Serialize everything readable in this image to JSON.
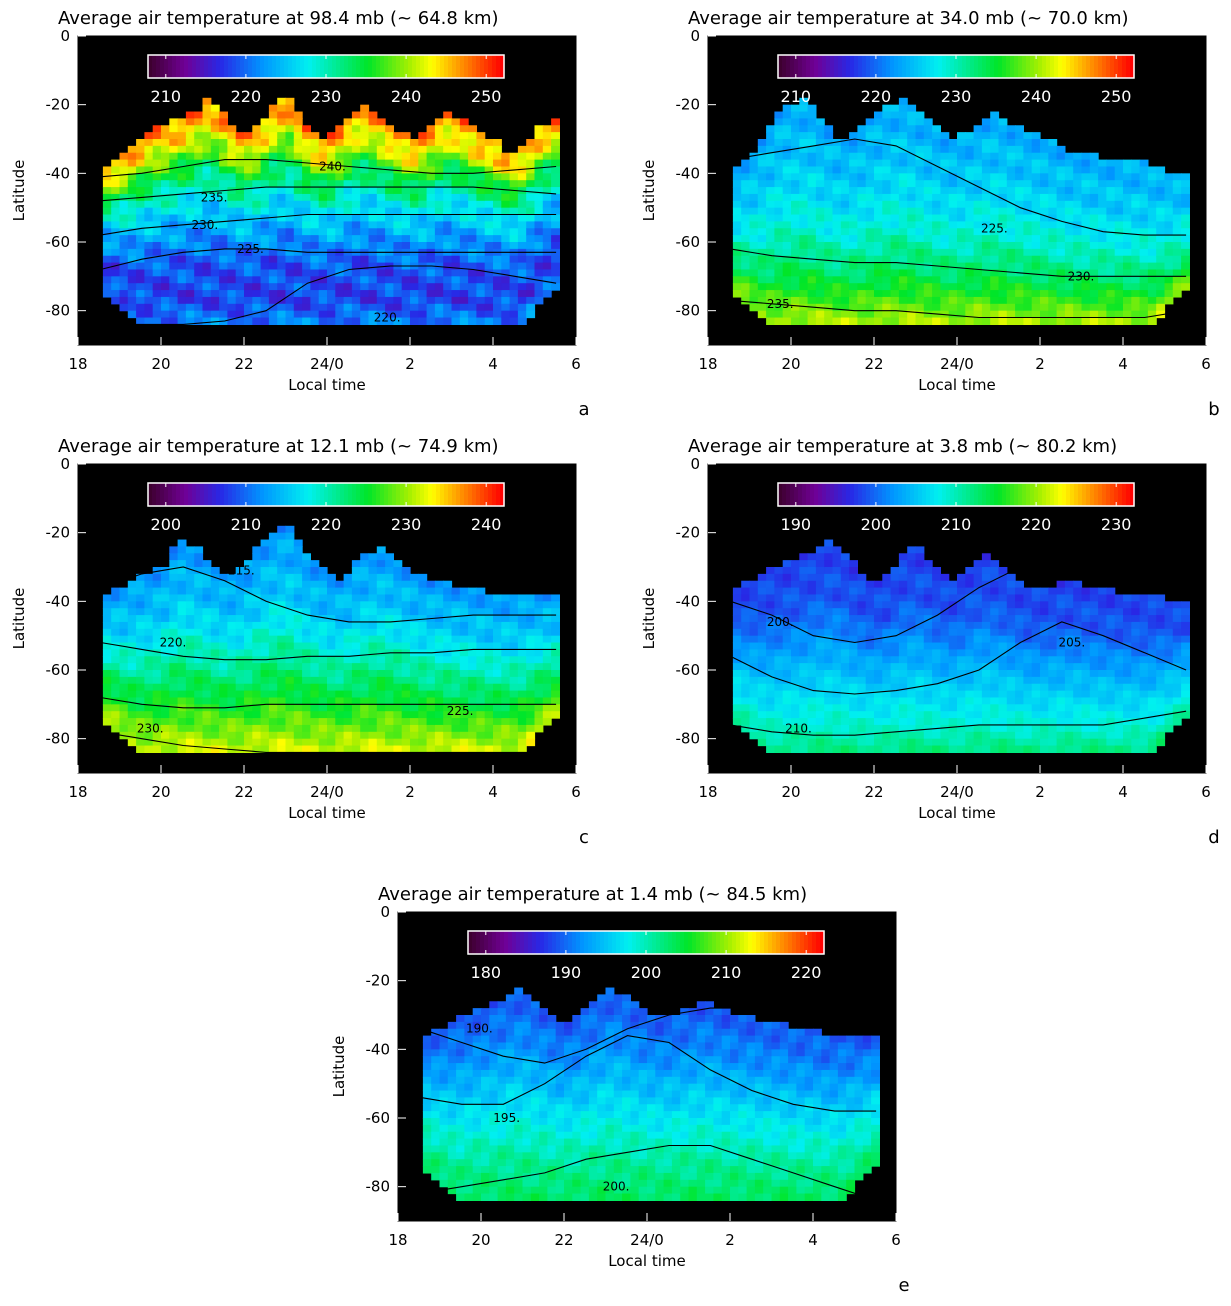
{
  "chart_data": [
    {
      "type": "heatmap",
      "panel_label": "a",
      "title": "Average air temperature at  98.4 mb (~ 64.8 km)",
      "xlabel": "Local time",
      "ylabel": "Latitude",
      "x_ticks": [
        "18",
        "20",
        "22",
        "24/0",
        "2",
        "4",
        "6"
      ],
      "y_ticks": [
        "0",
        "-20",
        "-40",
        "-60",
        "-80"
      ],
      "ylim": [
        -90,
        0
      ],
      "colorbar_ticks": [
        "210",
        "220",
        "230",
        "240",
        "250"
      ],
      "vmin": 210,
      "vmax": 250,
      "upper_edge": [
        -40,
        -36,
        -32,
        -28,
        -26,
        -24,
        -22,
        -18,
        -24,
        -28,
        -26,
        -20,
        -18,
        -26,
        -30,
        -28,
        -22,
        -20,
        -24,
        -28,
        -30,
        -26,
        -22,
        -24,
        -28,
        -30,
        -34,
        -32,
        -26,
        -24
      ],
      "profile": [
        [
          0,
          246
        ],
        [
          0.12,
          242
        ],
        [
          0.22,
          236
        ],
        [
          0.35,
          230
        ],
        [
          0.5,
          225
        ],
        [
          0.7,
          220
        ],
        [
          0.88,
          219
        ],
        [
          1,
          222
        ]
      ],
      "dlat": 3,
      "dlon": 5,
      "contours": [
        {
          "label": "240.",
          "y": [
            -41,
            -40,
            -38,
            -36,
            -36,
            -37,
            -38,
            -39,
            -40,
            -40,
            -39,
            -38
          ],
          "lx": 0.48,
          "ly": -38
        },
        {
          "label": "235.",
          "y": [
            -48,
            -47,
            -46,
            -45,
            -44,
            -44,
            -44,
            -44,
            -44,
            -44,
            -45,
            -46
          ],
          "lx": 0.22,
          "ly": -47
        },
        {
          "label": "230.",
          "y": [
            -58,
            -56,
            -55,
            -54,
            -53,
            -52,
            -52,
            -52,
            -52,
            -52,
            -52,
            -52
          ],
          "lx": 0.2,
          "ly": -55
        },
        {
          "label": "225.",
          "y": [
            -68,
            -65,
            -63,
            -62,
            -62,
            -63,
            -63,
            -63,
            -63,
            -63,
            -63,
            -63
          ],
          "lx": 0.3,
          "ly": -62
        },
        {
          "label": "220.",
          "y": [
            -84,
            -84,
            -84,
            -83,
            -80,
            -72,
            -68,
            -67,
            -67,
            -68,
            -70,
            -72
          ],
          "lx": 0.6,
          "ly": -82
        }
      ]
    },
    {
      "type": "heatmap",
      "panel_label": "b",
      "title": "Average air temperature at  34.0 mb (~ 70.0 km)",
      "xlabel": "Local time",
      "ylabel": "Latitude",
      "x_ticks": [
        "18",
        "20",
        "22",
        "24/0",
        "2",
        "4",
        "6"
      ],
      "y_ticks": [
        "0",
        "-20",
        "-40",
        "-60",
        "-80"
      ],
      "ylim": [
        -90,
        0
      ],
      "colorbar_ticks": [
        "210",
        "220",
        "230",
        "240",
        "250"
      ],
      "vmin": 210,
      "vmax": 250,
      "upper_edge": [
        -40,
        -36,
        -30,
        -22,
        -20,
        -18,
        -26,
        -30,
        -28,
        -24,
        -20,
        -18,
        -22,
        -26,
        -30,
        -28,
        -24,
        -22,
        -26,
        -28,
        -30,
        -32,
        -34,
        -34,
        -36,
        -36,
        -36,
        -38,
        -40,
        -40
      ],
      "profile": [
        [
          0,
          224
        ],
        [
          0.3,
          226
        ],
        [
          0.55,
          229
        ],
        [
          0.75,
          233
        ],
        [
          0.9,
          237
        ],
        [
          1,
          240
        ]
      ],
      "dlat": 2,
      "dlon": 3,
      "contours": [
        {
          "label": "225.",
          "y": [
            -36,
            -34,
            -32,
            -30,
            -32,
            -38,
            -44,
            -50,
            -54,
            -57,
            -58,
            -58
          ],
          "lx": 0.55,
          "ly": -56
        },
        {
          "label": "230.",
          "y": [
            -62,
            -64,
            -65,
            -66,
            -66,
            -67,
            -68,
            -69,
            -70,
            -70,
            -70,
            -70
          ],
          "lx": 0.74,
          "ly": -70
        },
        {
          "label": "235.",
          "y": [
            -77,
            -78,
            -79,
            -80,
            -80,
            -81,
            -82,
            -82,
            -82,
            -82,
            -82,
            -80
          ],
          "lx": 0.08,
          "ly": -78
        }
      ]
    },
    {
      "type": "heatmap",
      "panel_label": "c",
      "title": "Average air temperature at  12.1 mb (~ 74.9 km)",
      "xlabel": "Local time",
      "ylabel": "Latitude",
      "x_ticks": [
        "18",
        "20",
        "22",
        "24/0",
        "2",
        "4",
        "6"
      ],
      "y_ticks": [
        "0",
        "-20",
        "-40",
        "-60",
        "-80"
      ],
      "ylim": [
        -90,
        0
      ],
      "colorbar_ticks": [
        "200",
        "210",
        "220",
        "230",
        "240"
      ],
      "vmin": 200,
      "vmax": 240,
      "upper_edge": [
        -38,
        -36,
        -34,
        -32,
        -30,
        -22,
        -24,
        -28,
        -32,
        -30,
        -24,
        -20,
        -18,
        -26,
        -30,
        -34,
        -30,
        -26,
        -24,
        -28,
        -32,
        -34,
        -34,
        -36,
        -36,
        -38,
        -38,
        -38,
        -38,
        -38
      ],
      "profile": [
        [
          0,
          213
        ],
        [
          0.3,
          216
        ],
        [
          0.5,
          220
        ],
        [
          0.7,
          224
        ],
        [
          0.88,
          228
        ],
        [
          1,
          231
        ]
      ],
      "dlat": 2,
      "dlon": 3,
      "contours": [
        {
          "label": "215.",
          "y": [
            -36,
            -32,
            -30,
            -34,
            -40,
            -44,
            -46,
            -46,
            -45,
            -44,
            -44,
            -44
          ],
          "lx": 0.28,
          "ly": -31
        },
        {
          "label": "220.",
          "y": [
            -52,
            -54,
            -56,
            -57,
            -57,
            -56,
            -56,
            -55,
            -55,
            -54,
            -54,
            -54
          ],
          "lx": 0.13,
          "ly": -52
        },
        {
          "label": "225.",
          "y": [
            -68,
            -70,
            -71,
            -71,
            -70,
            -70,
            -70,
            -70,
            -70,
            -70,
            -70,
            -70
          ],
          "lx": 0.76,
          "ly": -72
        },
        {
          "label": "230.",
          "y": [
            -78,
            -80,
            -82,
            -83,
            -84,
            -84,
            -84,
            -84,
            -84,
            -84,
            -84,
            -84
          ],
          "lx": 0.08,
          "ly": -77
        }
      ]
    },
    {
      "type": "heatmap",
      "panel_label": "d",
      "title": "Average air temperature at   3.8 mb (~ 80.2 km)",
      "xlabel": "Local time",
      "ylabel": "Latitude",
      "x_ticks": [
        "18",
        "20",
        "22",
        "24/0",
        "2",
        "4",
        "6"
      ],
      "y_ticks": [
        "0",
        "-20",
        "-40",
        "-60",
        "-80"
      ],
      "ylim": [
        -90,
        0
      ],
      "colorbar_ticks": [
        "190",
        "200",
        "210",
        "220",
        "230"
      ],
      "vmin": 190,
      "vmax": 230,
      "upper_edge": [
        -36,
        -34,
        -32,
        -30,
        -28,
        -26,
        -22,
        -24,
        -30,
        -34,
        -32,
        -26,
        -24,
        -30,
        -34,
        -30,
        -26,
        -28,
        -32,
        -36,
        -36,
        -34,
        -34,
        -36,
        -36,
        -38,
        -38,
        -38,
        -40,
        -40
      ],
      "profile": [
        [
          0,
          199
        ],
        [
          0.25,
          200
        ],
        [
          0.45,
          203
        ],
        [
          0.65,
          206
        ],
        [
          0.85,
          209
        ],
        [
          1,
          212
        ]
      ],
      "dlat": 1.5,
      "dlon": 2,
      "contours": [
        {
          "label": "200.",
          "y": [
            -40,
            -44,
            -50,
            -52,
            -50,
            -44,
            -36,
            -30,
            -26,
            -26,
            -26,
            -26
          ],
          "lx": 0.08,
          "ly": -46
        },
        {
          "label": "205.",
          "y": [
            -56,
            -62,
            -66,
            -67,
            -66,
            -64,
            -60,
            -52,
            -46,
            -50,
            -55,
            -60
          ],
          "lx": 0.72,
          "ly": -52
        },
        {
          "label": "210.",
          "y": [
            -76,
            -78,
            -79,
            -79,
            -78,
            -77,
            -76,
            -76,
            -76,
            -76,
            -74,
            -72
          ],
          "lx": 0.12,
          "ly": -77
        }
      ]
    },
    {
      "type": "heatmap",
      "panel_label": "e",
      "title": "Average air temperature at    1.4 mb (~ 84.5 km)",
      "xlabel": "Local time",
      "ylabel": "Latitude",
      "x_ticks": [
        "18",
        "20",
        "22",
        "24/0",
        "2",
        "4",
        "6"
      ],
      "y_ticks": [
        "0",
        "-20",
        "-40",
        "-60",
        "-80"
      ],
      "ylim": [
        -90,
        0
      ],
      "colorbar_ticks": [
        "180",
        "190",
        "200",
        "210",
        "220"
      ],
      "vmin": 180,
      "vmax": 220,
      "upper_edge": [
        -36,
        -34,
        -32,
        -30,
        -28,
        -26,
        -22,
        -24,
        -28,
        -32,
        -30,
        -26,
        -22,
        -24,
        -28,
        -30,
        -30,
        -28,
        -26,
        -28,
        -30,
        -30,
        -32,
        -32,
        -34,
        -34,
        -36,
        -36,
        -36,
        -36
      ],
      "profile": [
        [
          0,
          190
        ],
        [
          0.2,
          192
        ],
        [
          0.4,
          195
        ],
        [
          0.6,
          198
        ],
        [
          0.8,
          201
        ],
        [
          1,
          203
        ]
      ],
      "dlat": 2,
      "dlon": 2,
      "contours": [
        {
          "label": "190.",
          "y": [
            -34,
            -38,
            -42,
            -44,
            -40,
            -34,
            -30,
            -28,
            -28,
            -28,
            -28,
            -28
          ],
          "lx": 0.1,
          "ly": -34
        },
        {
          "label": "195.",
          "y": [
            -54,
            -56,
            -56,
            -50,
            -42,
            -36,
            -38,
            -46,
            -52,
            -56,
            -58,
            -58
          ],
          "lx": 0.16,
          "ly": -60
        },
        {
          "label": "200.",
          "y": [
            -82,
            -80,
            -78,
            -76,
            -72,
            -70,
            -68,
            -68,
            -72,
            -76,
            -80,
            -84
          ],
          "lx": 0.4,
          "ly": -80
        }
      ]
    }
  ]
}
